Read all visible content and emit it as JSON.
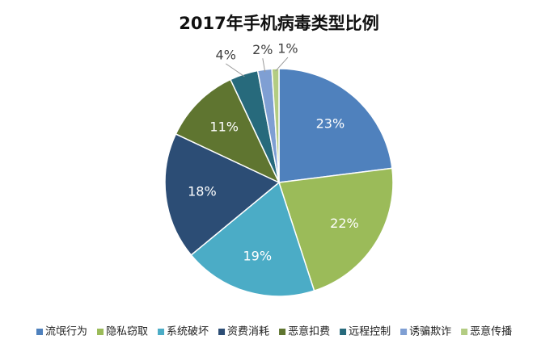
{
  "chart_data": {
    "type": "pie",
    "title": "2017年手机病毒类型比例",
    "categories": [
      "流氓行为",
      "隐私窃取",
      "系统破坏",
      "资费消耗",
      "恶意扣费",
      "远程控制",
      "诱骗欺诈",
      "恶意传播"
    ],
    "values": [
      23,
      22,
      19,
      18,
      11,
      4,
      2,
      1
    ],
    "value_labels": [
      "23%",
      "22%",
      "19%",
      "18%",
      "11%",
      "4%",
      "2%",
      "1%"
    ],
    "colors": [
      "#4f81bd",
      "#9bbb59",
      "#4bacc6",
      "#2c4d75",
      "#5f7530",
      "#276a7c",
      "#7f9fd3",
      "#b3cc82"
    ],
    "legend": "bottom"
  }
}
